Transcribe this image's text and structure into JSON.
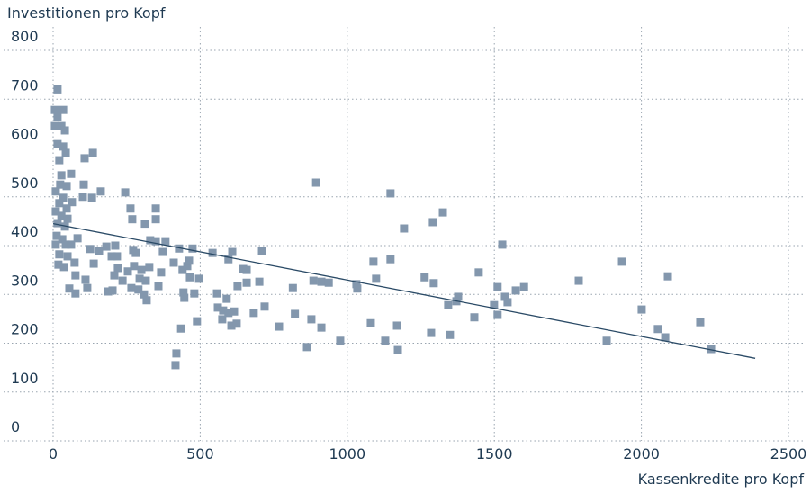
{
  "chart_data": {
    "type": "scatter",
    "y_label": "Investitionen pro Kopf",
    "x_label": "Kassenkredite pro Kopf",
    "color": "#8397ad",
    "xlim": [
      0,
      2500
    ],
    "xticks": [
      0,
      500,
      1000,
      1500,
      2000,
      2500
    ],
    "ylim": [
      0,
      800
    ],
    "yticks": [
      0,
      100,
      200,
      300,
      400,
      500,
      600,
      700,
      800
    ],
    "grid": true,
    "x": [
      15,
      6,
      34,
      15,
      28,
      6,
      40,
      15,
      34,
      43,
      21,
      61,
      28,
      107,
      135,
      24,
      46,
      104,
      162,
      9,
      34,
      101,
      132,
      21,
      64,
      46,
      9,
      28,
      49,
      15,
      40,
      12,
      31,
      83,
      9,
      43,
      61,
      21,
      49,
      18,
      37,
      73,
      126,
      138,
      76,
      110,
      116,
      55,
      76,
      187,
      156,
      181,
      211,
      199,
      217,
      220,
      208,
      236,
      202,
      245,
      263,
      269,
      312,
      349,
      349,
      272,
      281,
      330,
      349,
      382,
      428,
      373,
      410,
      275,
      300,
      327,
      294,
      315,
      358,
      367,
      309,
      318,
      254,
      266,
      290,
      419,
      416,
      435,
      443,
      446,
      456,
      462,
      440,
      474,
      465,
      480,
      496,
      489,
      542,
      557,
      560,
      575,
      578,
      590,
      596,
      609,
      596,
      606,
      624,
      615,
      627,
      646,
      658,
      658,
      682,
      701,
      710,
      719,
      768,
      815,
      822,
      863,
      878,
      912,
      894,
      885,
      912,
      937,
      976,
      1031,
      1034,
      1080,
      1089,
      1098,
      1129,
      1147,
      1147,
      1169,
      1172,
      1193,
      1263,
      1291,
      1294,
      1285,
      1325,
      1349,
      1343,
      1377,
      1371,
      1432,
      1447,
      1499,
      1511,
      1511,
      1527,
      1536,
      1545,
      1573,
      1601,
      1787,
      1882,
      1934,
      2001,
      2056,
      2081,
      2090,
      2200,
      2237
    ],
    "y": [
      720,
      678,
      678,
      663,
      645,
      645,
      636,
      608,
      603,
      590,
      575,
      547,
      544,
      579,
      590,
      525,
      522,
      525,
      511,
      511,
      498,
      500,
      498,
      487,
      489,
      476,
      470,
      461,
      455,
      446,
      439,
      420,
      413,
      415,
      402,
      402,
      402,
      382,
      378,
      361,
      356,
      365,
      393,
      363,
      339,
      330,
      313,
      312,
      302,
      306,
      389,
      398,
      400,
      378,
      378,
      354,
      339,
      328,
      308,
      509,
      476,
      454,
      445,
      476,
      454,
      391,
      385,
      411,
      409,
      409,
      394,
      387,
      365,
      358,
      350,
      356,
      332,
      328,
      317,
      345,
      300,
      288,
      347,
      313,
      310,
      179,
      155,
      230,
      304,
      293,
      358,
      369,
      350,
      394,
      335,
      302,
      332,
      245,
      385,
      302,
      273,
      249,
      267,
      291,
      372,
      387,
      262,
      236,
      240,
      265,
      317,
      352,
      350,
      324,
      262,
      326,
      389,
      275,
      234,
      313,
      260,
      192,
      249,
      232,
      529,
      328,
      326,
      324,
      205,
      321,
      312,
      241,
      367,
      332,
      205,
      372,
      507,
      236,
      186,
      435,
      335,
      448,
      323,
      221,
      468,
      217,
      278,
      295,
      286,
      253,
      345,
      278,
      315,
      258,
      402,
      295,
      284,
      308,
      315,
      328,
      205,
      367,
      269,
      229,
      212,
      337,
      243,
      188
    ],
    "trendline": {
      "x": [
        0,
        2387
      ],
      "y": [
        445,
        169
      ]
    }
  }
}
